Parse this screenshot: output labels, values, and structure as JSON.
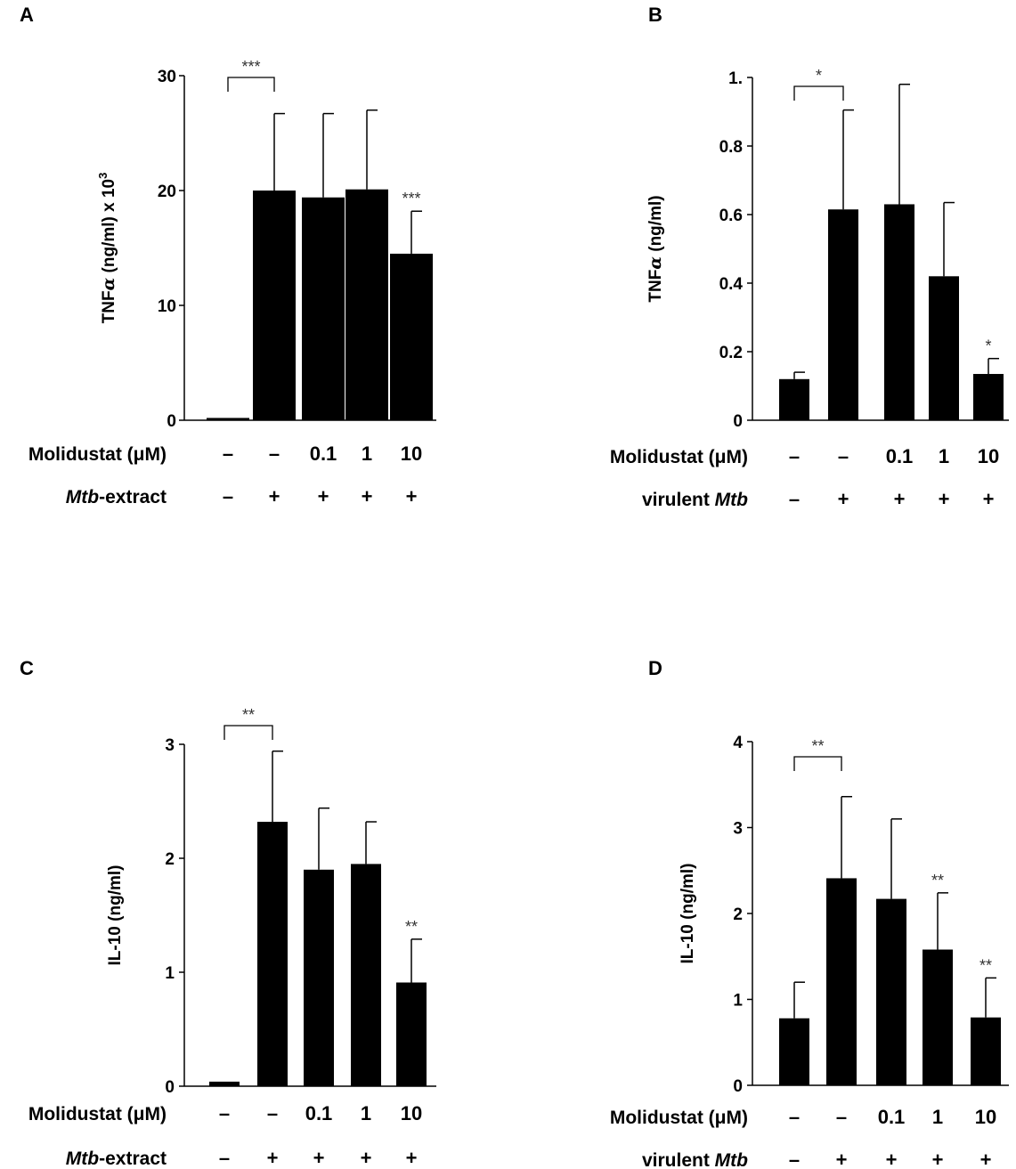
{
  "chart_data": [
    {
      "type": "bar",
      "panel": "A",
      "ylabel_main": "TNF",
      "ylabel_greek": "α",
      "ylabel_rest": " (ng/ml) x 10",
      "ylabel_sup": "3",
      "yticks": [
        "0",
        "10",
        "20",
        "30"
      ],
      "ylim": [
        0,
        30
      ],
      "values": [
        0.2,
        20.0,
        19.4,
        20.1,
        14.5
      ],
      "errors": [
        0,
        6.7,
        7.3,
        6.9,
        3.7
      ],
      "bracket_label": "***",
      "bar_annotations": [
        "",
        "",
        "",
        "",
        "***"
      ],
      "row1_label": "Molidustat (μM)",
      "row1_values": [
        "–",
        "–",
        "0.1",
        "1",
        "10"
      ],
      "row2_label_italic": "Mtb",
      "row2_label_rest": "-extract",
      "row2_values": [
        "–",
        "+",
        "+",
        "+",
        "+"
      ]
    },
    {
      "type": "bar",
      "panel": "B",
      "ylabel_main": "TNF",
      "ylabel_greek": "α",
      "ylabel_rest": " (ng/ml)",
      "ylabel_sup": "",
      "yticks": [
        "0",
        "0.2",
        "0.4",
        "0.6",
        "0.8",
        "1."
      ],
      "ylim": [
        0,
        1.0
      ],
      "values": [
        0.12,
        0.615,
        0.63,
        0.42,
        0.135
      ],
      "errors": [
        0.02,
        0.29,
        0.35,
        0.215,
        0.045
      ],
      "bracket_label": "*",
      "bar_annotations": [
        "",
        "",
        "",
        "",
        "*"
      ],
      "row1_label": "Molidustat (μM)",
      "row1_values": [
        "–",
        "–",
        "0.1",
        "1",
        "10"
      ],
      "row2_label_prefix": "virulent ",
      "row2_label_italic": "Mtb",
      "row2_values": [
        "–",
        "+",
        "+",
        "+",
        "+"
      ]
    },
    {
      "type": "bar",
      "panel": "C",
      "ylabel_main": "IL-10",
      "ylabel_greek": "",
      "ylabel_rest": " (ng/ml)",
      "ylabel_sup": "",
      "yticks": [
        "0",
        "1",
        "2",
        "3"
      ],
      "ylim": [
        0,
        3
      ],
      "values": [
        0.04,
        2.32,
        1.9,
        1.95,
        0.91
      ],
      "errors": [
        0,
        0.62,
        0.54,
        0.37,
        0.38
      ],
      "bracket_label": "**",
      "bar_annotations": [
        "",
        "",
        "",
        "",
        "**"
      ],
      "row1_label": "Molidustat (μM)",
      "row1_values": [
        "–",
        "–",
        "0.1",
        "1",
        "10"
      ],
      "row2_label_italic": "Mtb",
      "row2_label_rest": "-extract",
      "row2_values": [
        "–",
        "+",
        "+",
        "+",
        "+"
      ]
    },
    {
      "type": "bar",
      "panel": "D",
      "ylabel_main": "IL-10",
      "ylabel_greek": "",
      "ylabel_rest": " (ng/ml)",
      "ylabel_sup": "",
      "yticks": [
        "0",
        "1",
        "2",
        "3",
        "4"
      ],
      "ylim": [
        0,
        4
      ],
      "values": [
        0.78,
        2.41,
        2.17,
        1.58,
        0.79
      ],
      "errors": [
        0.42,
        0.95,
        0.93,
        0.66,
        0.46
      ],
      "bracket_label": "**",
      "bar_annotations": [
        "",
        "",
        "",
        "**",
        "**"
      ],
      "row1_label": "Molidustat (μM)",
      "row1_values": [
        "–",
        "–",
        "0.1",
        "1",
        "10"
      ],
      "row2_label_prefix": "virulent ",
      "row2_label_italic": "Mtb",
      "row2_values": [
        "–",
        "+",
        "+",
        "+",
        "+"
      ]
    }
  ]
}
